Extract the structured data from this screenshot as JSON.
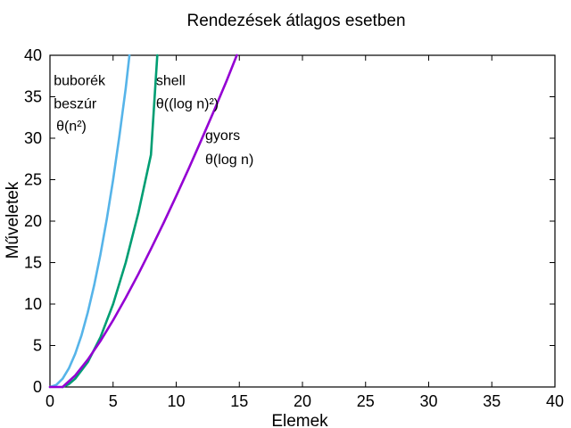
{
  "chart_data": {
    "type": "line",
    "title": "Rendezések átlagos esetben",
    "xlabel": "Elemek",
    "ylabel": "Műveletek",
    "xlim": [
      0,
      40
    ],
    "ylim": [
      0,
      40
    ],
    "xticks": [
      0,
      5,
      10,
      15,
      20,
      25,
      30,
      35,
      40
    ],
    "yticks": [
      0,
      5,
      10,
      15,
      20,
      25,
      30,
      35,
      40
    ],
    "grid": false,
    "series": [
      {
        "color": "#56b4e9",
        "x": [
          0.0,
          0.5,
          1.0,
          1.5,
          2.0,
          2.5,
          3.0,
          3.5,
          4.0,
          4.5,
          5.0,
          5.5,
          6.0,
          6.3
        ],
        "y": [
          0.0,
          0.25,
          1.0,
          2.25,
          4.0,
          6.25,
          9.0,
          12.25,
          16.0,
          20.25,
          25.0,
          30.25,
          36.0,
          40.0
        ]
      },
      {
        "color": "#009e73",
        "x": [
          1.0,
          1.5,
          2.0,
          3.0,
          4.0,
          5.0,
          6.0,
          7.0,
          8.0,
          8.5
        ],
        "y": [
          0.0,
          0.34,
          1.0,
          3.0,
          6.0,
          10.0,
          15.0,
          21.0,
          28.0,
          40.0
        ]
      },
      {
        "color": "#9400d3",
        "x": [
          0.0,
          1.0,
          2.0,
          3.0,
          4.0,
          5.0,
          6.0,
          7.0,
          8.0,
          9.0,
          10.0,
          11.0,
          12.0,
          13.0,
          14.0,
          14.8
        ],
        "y": [
          0.0,
          0.0,
          1.39,
          3.3,
          5.55,
          8.05,
          10.75,
          13.62,
          16.64,
          19.78,
          23.03,
          26.38,
          29.82,
          33.34,
          36.95,
          40.0
        ]
      }
    ],
    "annotations": [
      {
        "text": "buborék",
        "x": 0.3,
        "y": 36.4
      },
      {
        "text": "beszúr",
        "x": 0.3,
        "y": 33.6
      },
      {
        "text": "θ(n²)",
        "x": 0.5,
        "y": 30.9
      },
      {
        "text": "shell",
        "x": 8.4,
        "y": 36.4
      },
      {
        "text": "θ((log n)²)",
        "x": 8.4,
        "y": 33.6
      },
      {
        "text": "gyors",
        "x": 12.3,
        "y": 29.8
      },
      {
        "text": "θ(log n)",
        "x": 12.3,
        "y": 26.9
      }
    ]
  }
}
